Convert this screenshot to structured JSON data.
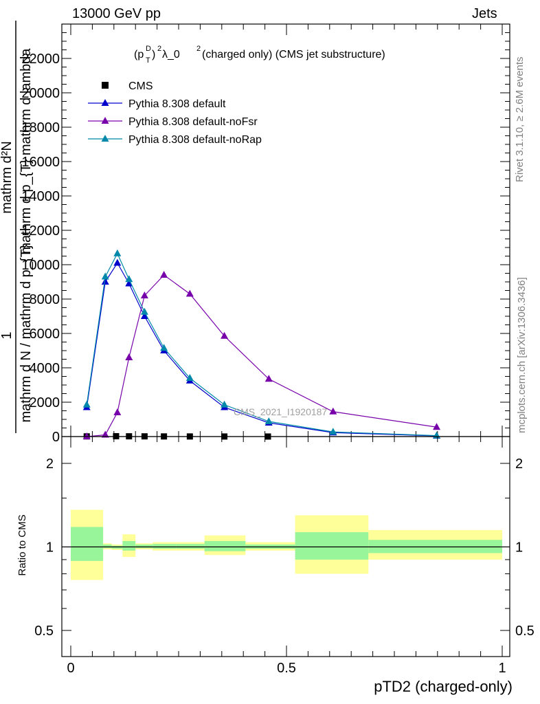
{
  "header": {
    "left": "13000 GeV pp",
    "right": "Jets"
  },
  "side_text": {
    "top": "Rivet 3.1.10, ≥ 2.6M events",
    "bottom": "mcplots.cern.ch [arXiv:1306.3436]"
  },
  "watermark": "CMS_2021_I1920187",
  "y_axis_label": {
    "numerator_line1": "mathrm d²N",
    "numerator_line2": "mathrm d p_{T} mathrm d lambda",
    "one": "1",
    "denominator": "mathrm d N / mathrm d p_{T}"
  },
  "ratio_ylabel": "Ratio to CMS",
  "x_axis_label": "pTD2 (charged-only)",
  "chart_data": [
    {
      "type": "line",
      "title": "(p_T^D)^2 λ_0^2 (charged only) (CMS jet substructure)",
      "title_parts": {
        "a": "(p",
        "sup_d": "D",
        "sub_t": "T",
        "b": ")",
        "sup_2": "2",
        "c": " λ_0",
        "sup_2b": "2",
        "d": " (charged only) (CMS jet substructure)"
      },
      "xlabel": "pTD2 (charged-only)",
      "xlim": [
        0,
        1
      ],
      "ylim": [
        0,
        24000
      ],
      "x_ticks": [
        0,
        0.5,
        1
      ],
      "x_tick_labels": [
        "0",
        "0.5",
        "1"
      ],
      "y_ticks": [
        0,
        2000,
        4000,
        6000,
        8000,
        10000,
        12000,
        14000,
        16000,
        18000,
        20000,
        22000
      ],
      "y_tick_labels": [
        "0",
        "2000",
        "4000",
        "6000",
        "8000",
        "10000",
        "12000",
        "14000",
        "16000",
        "18000",
        "20000",
        "22000"
      ],
      "legend_position": "top-left",
      "series": [
        {
          "name": "CMS",
          "color": "#000000",
          "marker": "square",
          "x": [
            0.037,
            0.105,
            0.135,
            0.171,
            0.216,
            0.276,
            0.356,
            0.457
          ],
          "y": [
            10,
            20,
            15,
            12,
            8,
            6,
            4,
            2
          ]
        },
        {
          "name": "Pythia 8.308 default",
          "color": "#0000cc",
          "marker": "triangle",
          "x": [
            0.037,
            0.08,
            0.108,
            0.135,
            0.171,
            0.216,
            0.276,
            0.356,
            0.459,
            0.608,
            0.848
          ],
          "y": [
            1700,
            9000,
            10100,
            8900,
            7000,
            5000,
            3250,
            1700,
            800,
            230,
            40
          ]
        },
        {
          "name": "Pythia 8.308 default-noFsr",
          "color": "#7700aa",
          "marker": "triangle",
          "x": [
            0.037,
            0.08,
            0.108,
            0.135,
            0.171,
            0.216,
            0.276,
            0.356,
            0.459,
            0.608,
            0.848
          ],
          "y": [
            0,
            100,
            1400,
            4600,
            8200,
            9400,
            8300,
            5850,
            3350,
            1450,
            550
          ]
        },
        {
          "name": "Pythia 8.308 default-noRap",
          "color": "#0088aa",
          "marker": "triangle",
          "x": [
            0.037,
            0.08,
            0.108,
            0.135,
            0.171,
            0.216,
            0.276,
            0.356,
            0.459,
            0.608,
            0.848
          ],
          "y": [
            1850,
            9300,
            10650,
            9150,
            7250,
            5150,
            3400,
            1850,
            880,
            270,
            55
          ]
        }
      ]
    },
    {
      "type": "area",
      "ylabel": "Ratio to CMS",
      "xlim": [
        0,
        1
      ],
      "ylim": [
        0.39,
        2.3
      ],
      "y_scale": "log",
      "y_ticks": [
        0.5,
        1,
        2
      ],
      "y_tick_labels": [
        "0.5",
        "1",
        "2"
      ],
      "reference_line": 1,
      "bands": [
        {
          "xlo": 0.0,
          "xhi": 0.075,
          "green": [
            0.89,
            1.18
          ],
          "yellow": [
            0.76,
            1.36
          ]
        },
        {
          "xlo": 0.075,
          "xhi": 0.095,
          "green": [
            0.99,
            1.02
          ],
          "yellow": [
            0.98,
            1.03
          ]
        },
        {
          "xlo": 0.095,
          "xhi": 0.12,
          "green": [
            0.985,
            1.01
          ],
          "yellow": [
            0.975,
            1.02
          ]
        },
        {
          "xlo": 0.12,
          "xhi": 0.15,
          "green": [
            0.97,
            1.05
          ],
          "yellow": [
            0.92,
            1.11
          ]
        },
        {
          "xlo": 0.15,
          "xhi": 0.19,
          "green": [
            0.99,
            1.02
          ],
          "yellow": [
            0.98,
            1.03
          ]
        },
        {
          "xlo": 0.19,
          "xhi": 0.245,
          "green": [
            0.985,
            1.025
          ],
          "yellow": [
            0.97,
            1.04
          ]
        },
        {
          "xlo": 0.245,
          "xhi": 0.31,
          "green": [
            0.985,
            1.025
          ],
          "yellow": [
            0.97,
            1.04
          ]
        },
        {
          "xlo": 0.31,
          "xhi": 0.405,
          "green": [
            0.965,
            1.05
          ],
          "yellow": [
            0.935,
            1.1
          ]
        },
        {
          "xlo": 0.405,
          "xhi": 0.52,
          "green": [
            0.985,
            1.02
          ],
          "yellow": [
            0.97,
            1.04
          ]
        },
        {
          "xlo": 0.52,
          "xhi": 0.69,
          "green": [
            0.9,
            1.13
          ],
          "yellow": [
            0.8,
            1.3
          ]
        },
        {
          "xlo": 0.69,
          "xhi": 1.0,
          "green": [
            0.95,
            1.06
          ],
          "yellow": [
            0.9,
            1.15
          ]
        }
      ]
    }
  ]
}
